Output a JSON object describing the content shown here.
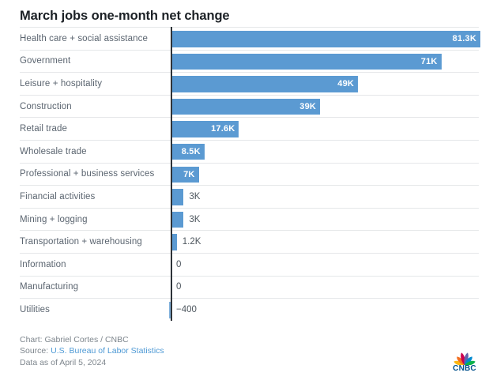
{
  "title": "March jobs one-month net change",
  "chart_data": {
    "type": "bar",
    "orientation": "horizontal",
    "title": "March jobs one-month net change",
    "categories": [
      "Health care + social assistance",
      "Government",
      "Leisure + hospitality",
      "Construction",
      "Retail trade",
      "Wholesale trade",
      "Professional + business services",
      "Financial activities",
      "Mining + logging",
      "Transportation + warehousing",
      "Information",
      "Manufacturing",
      "Utilities"
    ],
    "values": [
      81300,
      71000,
      49000,
      39000,
      17600,
      8500,
      7000,
      3000,
      3000,
      1200,
      0,
      0,
      -400
    ],
    "value_labels": [
      "81.3K",
      "71K",
      "49K",
      "39K",
      "17.6K",
      "8.5K",
      "7K",
      "3K",
      "3K",
      "1.2K",
      "0",
      "0",
      "−400"
    ],
    "xlim": [
      -400,
      81300
    ],
    "xmax": 81300,
    "grid": "off",
    "legend": "none",
    "bar_color": "#5b9ad2",
    "axis_color": "#2e3338",
    "row_line_color": "#e5e7e9",
    "inside_label_color": "#ffffff",
    "outside_label_color": "#4d565e"
  },
  "footer": {
    "credit": "Chart: Gabriel Cortes / CNBC",
    "source_label": "Source: ",
    "source_link": "U.S. Bureau of Labor Statistics",
    "source_link_color": "#4f9ad5",
    "data_as_of": "Data as of April 5, 2024"
  },
  "logo": {
    "text": "CNBC",
    "peacock_colors": [
      "#FCB711",
      "#F37021",
      "#CC004C",
      "#6460AA",
      "#0089D0",
      "#0DB14B"
    ]
  }
}
